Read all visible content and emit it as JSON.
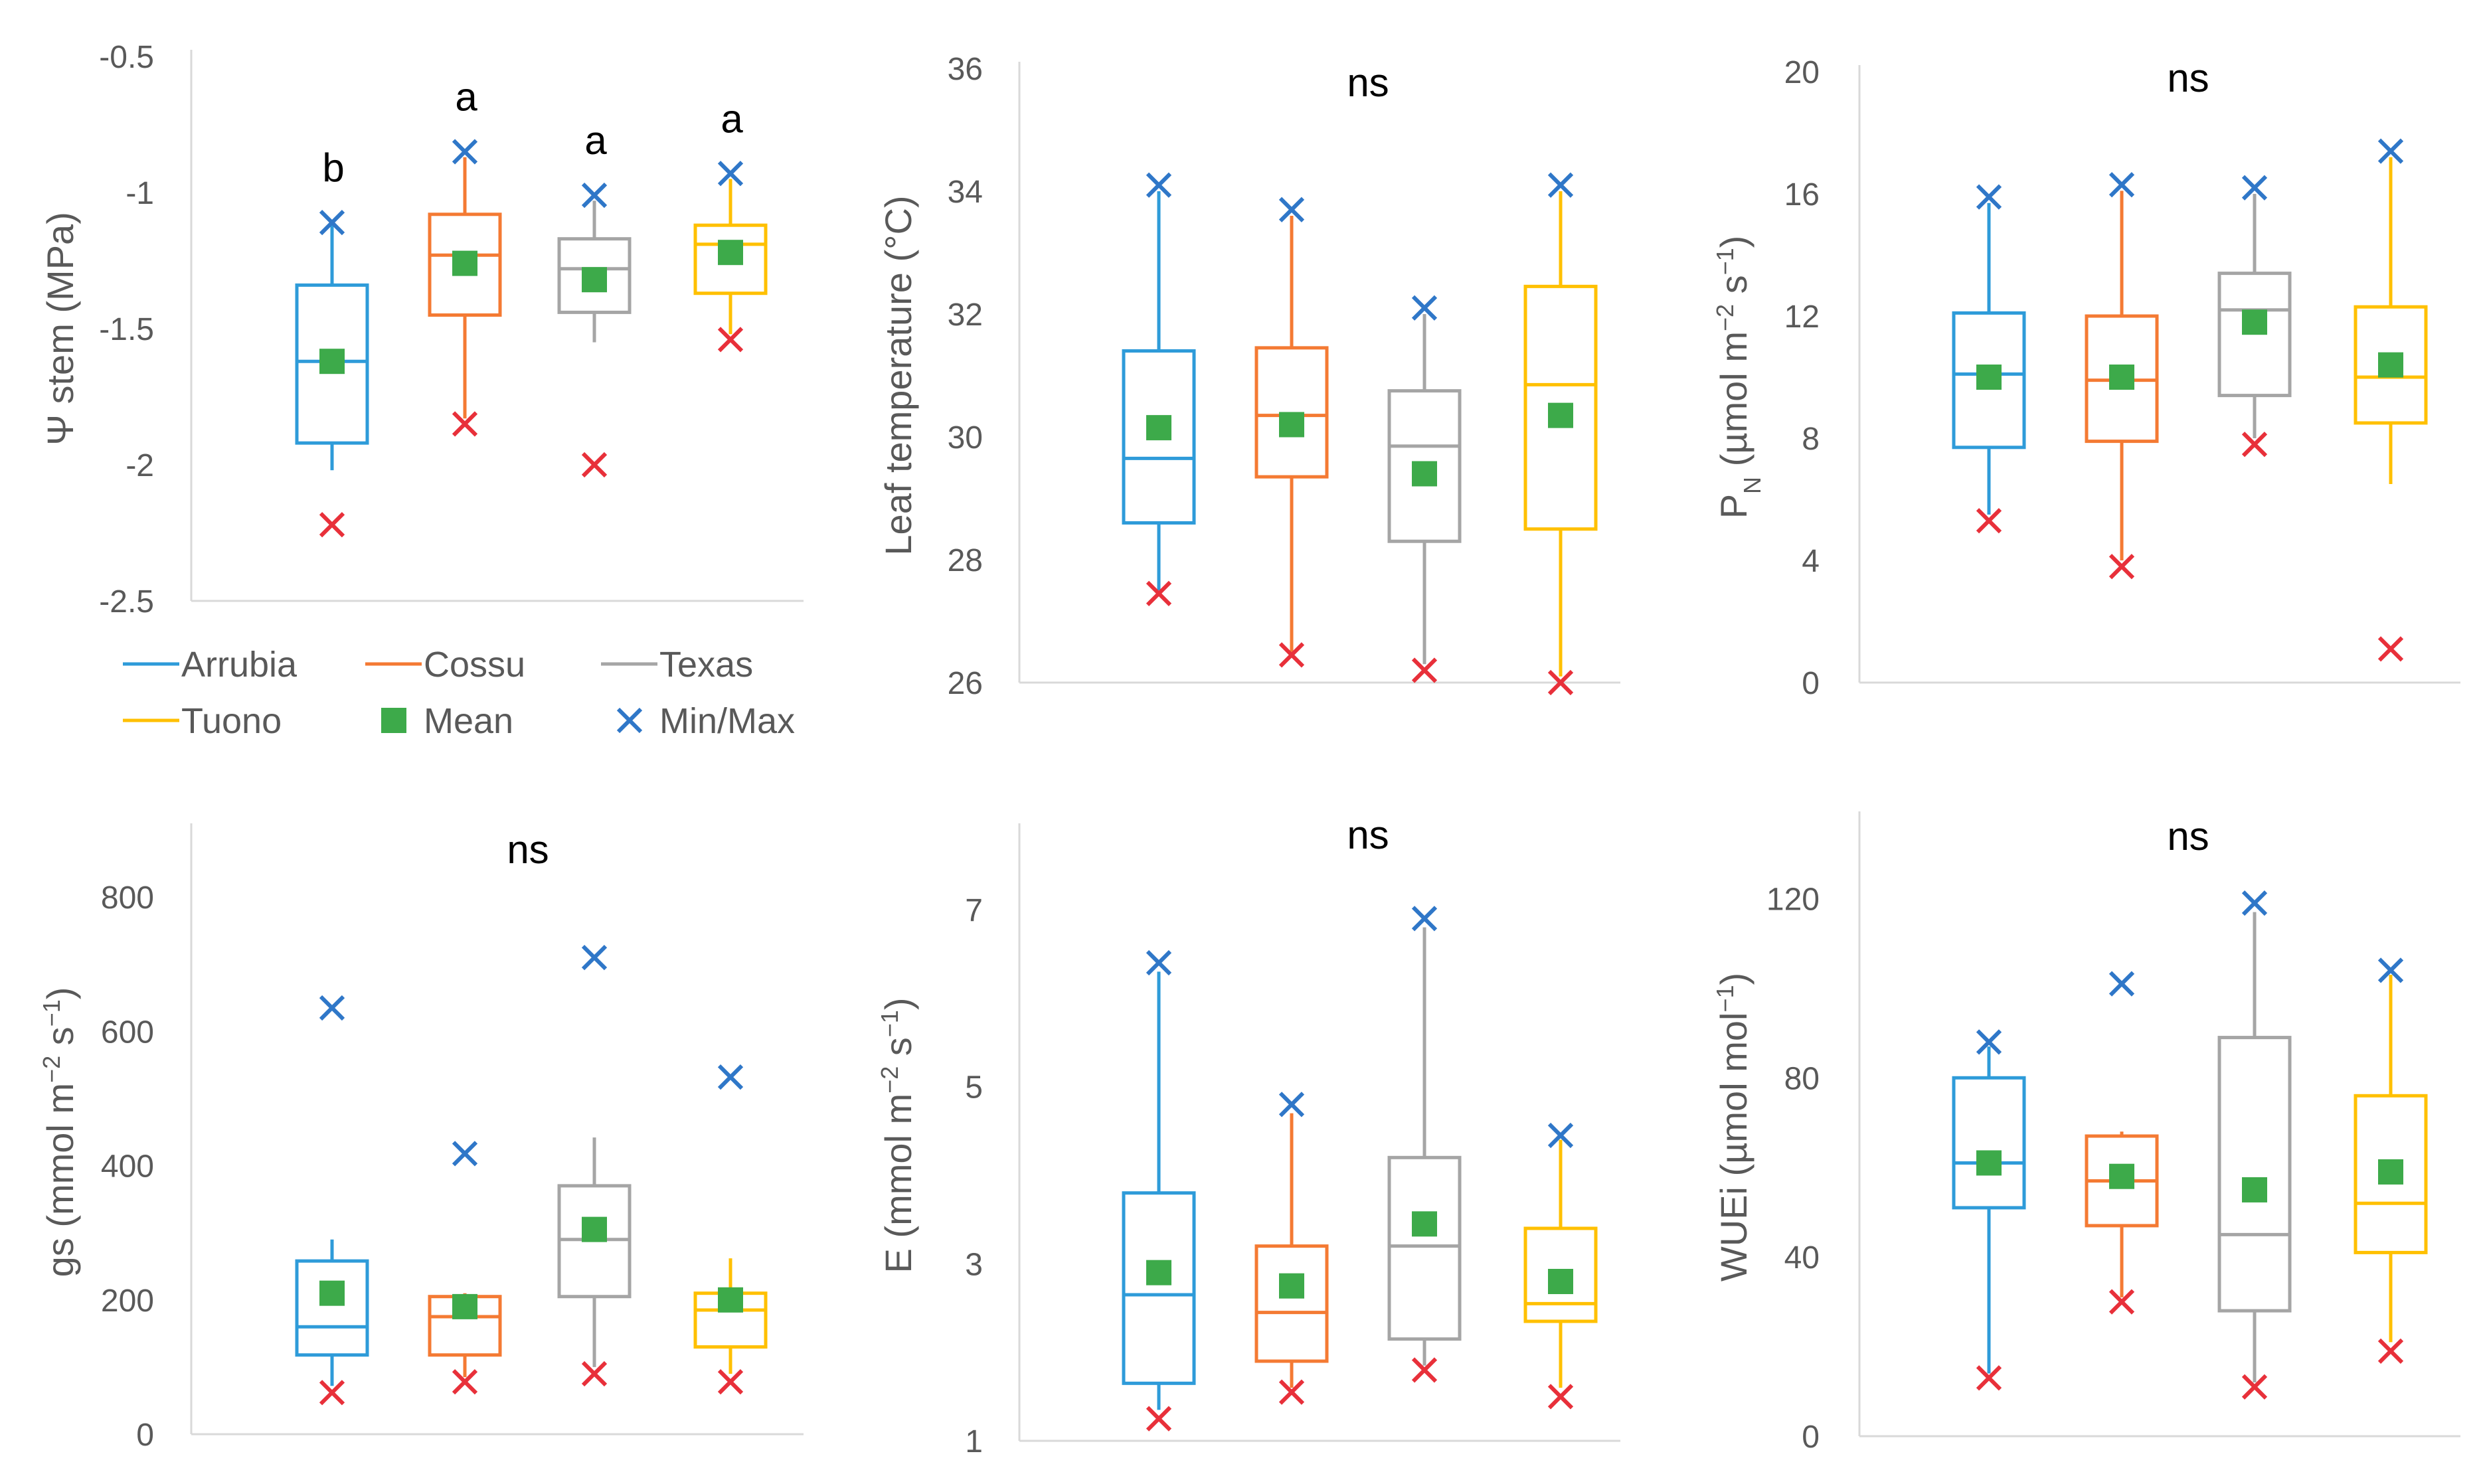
{
  "colors": {
    "Arrubia": "#2E9BD9",
    "Cossu": "#F47A33",
    "Texas": "#A5A5A5",
    "Tuono": "#FFC000",
    "mean": "#3DAA4A",
    "max_marker": "#2F77C8",
    "min_marker": "#E8303A",
    "axis": "#D9D9D9",
    "text": "#595959"
  },
  "legend": [
    {
      "name": "Arrubia",
      "icon": "line-swatch"
    },
    {
      "name": "Cossu",
      "icon": "line-swatch"
    },
    {
      "name": "Texas",
      "icon": "line-swatch"
    },
    {
      "name": "Tuono",
      "icon": "line-swatch"
    },
    {
      "name": "Mean",
      "icon": "square-marker"
    },
    {
      "name": "Min/Max",
      "icon": "cross-marker"
    }
  ],
  "chart_data": [
    {
      "type": "boxplot",
      "ylabel_parts": [
        {
          "t": "Ψ stem (MPa)"
        }
      ],
      "ylim": [
        -2.5,
        -0.5
      ],
      "yticks": [
        -0.5,
        -1,
        -1.5,
        -2,
        -2.5
      ],
      "ytick_labels": [
        "-0.5",
        "-1",
        "-1.5",
        "-2",
        "-2.5"
      ],
      "significance": "",
      "groups": [
        {
          "name": "Arrubia",
          "q1": -1.92,
          "median": -1.62,
          "q3": -1.34,
          "wlow": -2.02,
          "whigh": -1.12,
          "mean": -1.62,
          "min": -2.22,
          "max": -1.11,
          "letter": "b"
        },
        {
          "name": "Cossu",
          "q1": -1.45,
          "median": -1.23,
          "q3": -1.08,
          "wlow": -1.83,
          "whigh": -0.87,
          "mean": -1.26,
          "min": -1.85,
          "max": -0.85,
          "letter": "a"
        },
        {
          "name": "Texas",
          "q1": -1.44,
          "median": -1.28,
          "q3": -1.17,
          "wlow": -1.55,
          "whigh": -1.03,
          "mean": -1.32,
          "min": -2.0,
          "max": -1.01,
          "letter": "a"
        },
        {
          "name": "Tuono",
          "q1": -1.37,
          "median": -1.19,
          "q3": -1.12,
          "wlow": -1.52,
          "whigh": -0.95,
          "mean": -1.22,
          "min": -1.54,
          "max": -0.93,
          "letter": "a"
        }
      ]
    },
    {
      "type": "boxplot",
      "ylabel_parts": [
        {
          "t": "Leaf temperature (°C)"
        }
      ],
      "ylim": [
        26,
        36
      ],
      "yticks": [
        26,
        28,
        30,
        32,
        34,
        36
      ],
      "ytick_labels": [
        "26",
        "28",
        "30",
        "32",
        "34",
        "36"
      ],
      "significance": "ns",
      "groups": [
        {
          "name": "Arrubia",
          "q1": 28.6,
          "median": 29.65,
          "q3": 31.4,
          "wlow": 27.5,
          "whigh": 34.0,
          "mean": 30.15,
          "min": 27.45,
          "max": 34.1,
          "letter": ""
        },
        {
          "name": "Cossu",
          "q1": 29.35,
          "median": 30.35,
          "q3": 31.45,
          "wlow": 26.5,
          "whigh": 33.6,
          "mean": 30.2,
          "min": 26.45,
          "max": 33.7,
          "letter": ""
        },
        {
          "name": "Texas",
          "q1": 28.3,
          "median": 29.85,
          "q3": 30.75,
          "wlow": 26.3,
          "whigh": 32.0,
          "mean": 29.4,
          "min": 26.2,
          "max": 32.1,
          "letter": ""
        },
        {
          "name": "Tuono",
          "q1": 28.5,
          "median": 30.85,
          "q3": 32.45,
          "wlow": 26.1,
          "whigh": 34.0,
          "mean": 30.35,
          "min": 26.0,
          "max": 34.1,
          "letter": ""
        }
      ]
    },
    {
      "type": "boxplot",
      "ylabel_parts": [
        {
          "t": "P"
        },
        {
          "t": "N",
          "sub": true
        },
        {
          "t": " (µmol m"
        },
        {
          "t": "−2",
          "sup": true
        },
        {
          "t": " s"
        },
        {
          "t": "−1",
          "sup": true
        },
        {
          "t": ")"
        }
      ],
      "ylim": [
        0,
        20
      ],
      "yticks": [
        0,
        4,
        8,
        12,
        16,
        20
      ],
      "ytick_labels": [
        "0",
        "4",
        "8",
        "12",
        "16",
        "20"
      ],
      "significance": "ns",
      "groups": [
        {
          "name": "Arrubia",
          "q1": 7.7,
          "median": 10.1,
          "q3": 12.1,
          "wlow": 5.5,
          "whigh": 15.7,
          "mean": 10.0,
          "min": 5.3,
          "max": 15.9,
          "letter": ""
        },
        {
          "name": "Cossu",
          "q1": 7.9,
          "median": 9.9,
          "q3": 12.0,
          "wlow": 4.0,
          "whigh": 16.1,
          "mean": 10.0,
          "min": 3.8,
          "max": 16.3,
          "letter": ""
        },
        {
          "name": "Texas",
          "q1": 9.4,
          "median": 12.2,
          "q3": 13.4,
          "wlow": 8.0,
          "whigh": 16.0,
          "mean": 11.8,
          "min": 7.8,
          "max": 16.2,
          "letter": ""
        },
        {
          "name": "Tuono",
          "q1": 8.5,
          "median": 10.0,
          "q3": 12.3,
          "wlow": 6.5,
          "whigh": 17.2,
          "mean": 10.4,
          "min": 1.1,
          "max": 17.4,
          "letter": ""
        }
      ]
    },
    {
      "type": "boxplot",
      "ylabel_parts": [
        {
          "t": "gs (mmol m"
        },
        {
          "t": "−2",
          "sup": true
        },
        {
          "t": " s"
        },
        {
          "t": "−1",
          "sup": true
        },
        {
          "t": ")"
        }
      ],
      "ylim": [
        0,
        900
      ],
      "yticks": [
        0,
        200,
        400,
        600,
        800
      ],
      "ytick_labels": [
        "0",
        "200",
        "400",
        "600",
        "800"
      ],
      "significance": "ns",
      "groups": [
        {
          "name": "Arrubia",
          "q1": 118,
          "median": 160,
          "q3": 258,
          "wlow": 72,
          "whigh": 290,
          "mean": 210,
          "min": 62,
          "max": 635,
          "letter": ""
        },
        {
          "name": "Cossu",
          "q1": 118,
          "median": 175,
          "q3": 205,
          "wlow": 85,
          "whigh": 210,
          "mean": 190,
          "min": 78,
          "max": 418,
          "letter": ""
        },
        {
          "name": "Texas",
          "q1": 205,
          "median": 290,
          "q3": 370,
          "wlow": 100,
          "whigh": 442,
          "mean": 305,
          "min": 90,
          "max": 710,
          "letter": ""
        },
        {
          "name": "Tuono",
          "q1": 130,
          "median": 185,
          "q3": 210,
          "wlow": 90,
          "whigh": 262,
          "mean": 200,
          "min": 78,
          "max": 532,
          "letter": ""
        }
      ]
    },
    {
      "type": "boxplot",
      "ylabel_parts": [
        {
          "t": "E (mmol m"
        },
        {
          "t": "−2",
          "sup": true
        },
        {
          "t": " s"
        },
        {
          "t": "−1",
          "sup": true
        },
        {
          "t": ")"
        }
      ],
      "ylim": [
        1,
        7.9
      ],
      "yticks": [
        1,
        3,
        5,
        7
      ],
      "ytick_labels": [
        "1",
        "3",
        "5",
        "7"
      ],
      "significance": "ns",
      "groups": [
        {
          "name": "Arrubia",
          "q1": 1.65,
          "median": 2.65,
          "q3": 3.8,
          "wlow": 1.35,
          "whigh": 6.3,
          "mean": 2.9,
          "min": 1.25,
          "max": 6.4,
          "letter": ""
        },
        {
          "name": "Cossu",
          "q1": 1.9,
          "median": 2.45,
          "q3": 3.2,
          "wlow": 1.6,
          "whigh": 4.7,
          "mean": 2.75,
          "min": 1.55,
          "max": 4.8,
          "letter": ""
        },
        {
          "name": "Texas",
          "q1": 2.15,
          "median": 3.2,
          "q3": 4.2,
          "wlow": 1.85,
          "whigh": 6.8,
          "mean": 3.45,
          "min": 1.8,
          "max": 6.9,
          "letter": ""
        },
        {
          "name": "Tuono",
          "q1": 2.35,
          "median": 2.55,
          "q3": 3.4,
          "wlow": 1.6,
          "whigh": 4.4,
          "mean": 2.8,
          "min": 1.5,
          "max": 4.45,
          "letter": ""
        }
      ]
    },
    {
      "type": "boxplot",
      "ylabel_parts": [
        {
          "t": "WUEi (µmol mol"
        },
        {
          "t": "−1",
          "sup": true
        },
        {
          "t": ")"
        }
      ],
      "ylim": [
        0,
        138
      ],
      "yticks": [
        0,
        40,
        80,
        120
      ],
      "ytick_labels": [
        "0",
        "40",
        "80",
        "120"
      ],
      "significance": "ns",
      "groups": [
        {
          "name": "Arrubia",
          "q1": 51,
          "median": 61,
          "q3": 80,
          "wlow": 14,
          "whigh": 87,
          "mean": 61,
          "min": 13,
          "max": 88,
          "letter": ""
        },
        {
          "name": "Cossu",
          "q1": 47,
          "median": 57,
          "q3": 67,
          "wlow": 31,
          "whigh": 68,
          "mean": 58,
          "min": 30,
          "max": 101,
          "letter": ""
        },
        {
          "name": "Texas",
          "q1": 28,
          "median": 45,
          "q3": 89,
          "wlow": 12,
          "whigh": 117,
          "mean": 55,
          "min": 11,
          "max": 119,
          "letter": ""
        },
        {
          "name": "Tuono",
          "q1": 41,
          "median": 52,
          "q3": 76,
          "wlow": 21,
          "whigh": 103,
          "mean": 59,
          "min": 19,
          "max": 104,
          "letter": ""
        }
      ]
    }
  ]
}
